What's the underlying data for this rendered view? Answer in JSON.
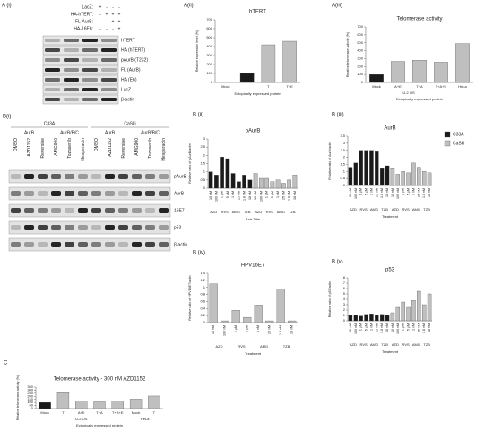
{
  "blots": [
    {
      "panel_label": "A (i)",
      "conditions": [
        {
          "name": "LacZ:",
          "signs": [
            "+",
            "-",
            "-",
            "-"
          ]
        },
        {
          "name": "HA-hTERT:",
          "signs": [
            "-",
            "+",
            "+",
            "+"
          ]
        },
        {
          "name": "FL-AurB:",
          "signs": [
            "-",
            "-",
            "+",
            "+"
          ]
        },
        {
          "name": "HA-16E6:",
          "signs": [
            "-",
            "-",
            "-",
            "+"
          ]
        }
      ],
      "rows": [
        "hTERT",
        "HA (hTERT)",
        "pAurB (T232)",
        "FL (AurB)",
        "HA (E6)",
        "LacZ",
        "β-actin"
      ]
    },
    {
      "panel_label": "B(i)",
      "cell_lines": [
        {
          "name": "C33A",
          "subheaders": [
            "AurB",
            "AurB/B/C"
          ],
          "lanes": [
            "DMSO",
            "AZD1152",
            "Reversine",
            "AMG900",
            "Tozasertib",
            "Hesperadin"
          ]
        },
        {
          "name": "CaSki",
          "subheaders": [
            "AurB",
            "AurB/B/C"
          ],
          "lanes": [
            "DMSO",
            "AZD1152",
            "Reversine",
            "AMG900",
            "Tozasertib",
            "Hesperadin"
          ]
        }
      ],
      "rows": [
        "pAurB",
        "AurB",
        "16E7",
        "p53",
        "β-actin"
      ]
    }
  ],
  "chart_data": [
    {
      "type": "bar",
      "panel_label": "A(ii)",
      "title": "hTERT",
      "ylabel": "Relative expression level (%)",
      "xlabel": "Ectopically expressed protein",
      "categories": [
        "Mock",
        null,
        "T",
        "T+E"
      ],
      "values": [
        0,
        100,
        420,
        460
      ],
      "colors": [
        "#bfbfbf",
        "#1a1a1a",
        "#bfbfbf",
        "#bfbfbf"
      ],
      "ylim": [
        0,
        700
      ],
      "yticks": [
        0,
        100,
        200,
        300,
        400,
        500,
        600,
        700
      ]
    },
    {
      "type": "bar",
      "panel_label": "A(iii)",
      "title": "Telomerase activity",
      "ylabel": "Relative telomerase activity (%)",
      "xlabel": "Ectopically expressed protein",
      "categories": [
        "Mock",
        "A+E",
        "T+A",
        "T+A+E",
        "HeLa"
      ],
      "values": [
        100,
        265,
        280,
        255,
        490
      ],
      "colors": [
        "#1a1a1a",
        "#bfbfbf",
        "#bfbfbf",
        "#bfbfbf",
        "#bfbfbf"
      ],
      "groups": [
        {
          "label": "U-2 OS",
          "first": 0,
          "last": 3
        }
      ],
      "ylim": [
        0,
        700
      ],
      "yticks": [
        0,
        100,
        200,
        300,
        400,
        500,
        600,
        700
      ]
    },
    {
      "type": "bar",
      "panel_label": "B (ii)",
      "title": "pAurB",
      "ylabel": "Relative ratio of pAurB/actin",
      "xlabel": "Axis Title",
      "categories": [
        "10 nM",
        "100 nM",
        "1 μM",
        "5 μM",
        "1 nM",
        "25 nM",
        "1.8 nM",
        "18 nM",
        "10 nM",
        "100 nM",
        "1 μM",
        "5 μM",
        "1 nM",
        "25 nM",
        "1.8 nM",
        "18 nM"
      ],
      "series": [
        {
          "name": "C33A",
          "color": "#1a1a1a",
          "values": [
            1.0,
            0.8,
            1.9,
            1.8,
            0.9,
            0.4,
            0.8,
            0.5,
            null,
            null,
            null,
            null,
            null,
            null,
            null,
            null
          ]
        },
        {
          "name": "CaSki",
          "color": "#bfbfbf",
          "values": [
            null,
            null,
            null,
            null,
            null,
            null,
            null,
            null,
            0.9,
            0.6,
            0.6,
            0.4,
            0.5,
            0.3,
            0.5,
            0.8
          ]
        }
      ],
      "groups": [
        {
          "label": "AZD",
          "first": 0,
          "last": 1
        },
        {
          "label": "RVS",
          "first": 2,
          "last": 3
        },
        {
          "label": "AMG",
          "first": 4,
          "last": 5
        },
        {
          "label": "TZB",
          "first": 6,
          "last": 7
        },
        {
          "label": "AZD",
          "first": 8,
          "last": 9
        },
        {
          "label": "RVS",
          "first": 10,
          "last": 11
        },
        {
          "label": "AMG",
          "first": 12,
          "last": 13
        },
        {
          "label": "TZB",
          "first": 14,
          "last": 15
        }
      ],
      "ylim": [
        0,
        3
      ],
      "yticks": [
        0,
        0.5,
        1,
        1.5,
        2,
        2.5,
        3
      ]
    },
    {
      "type": "bar",
      "panel_label": "B (iii)",
      "title": "AurB",
      "ylabel": "Relative ratio of AurB/actin",
      "xlabel": "Treatment",
      "legend": true,
      "categories": [
        "10 nM",
        "100 nM",
        "1 μM",
        "5 μM",
        "1 nM",
        "25 nM",
        "1.8 nM",
        "18 nM",
        "10 nM",
        "100 nM",
        "1 μM",
        "5 μM",
        "1 nM",
        "25 nM",
        "1.8 nM",
        "18 nM"
      ],
      "series": [
        {
          "name": "C33A",
          "color": "#1a1a1a",
          "values": [
            1.3,
            1.6,
            2.5,
            2.5,
            2.5,
            2.4,
            1.2,
            1.4,
            null,
            null,
            null,
            null,
            null,
            null,
            null,
            null
          ]
        },
        {
          "name": "CaSki",
          "color": "#bfbfbf",
          "values": [
            null,
            null,
            null,
            null,
            null,
            null,
            null,
            null,
            1.2,
            0.8,
            1.0,
            0.9,
            1.6,
            1.3,
            1.0,
            0.9
          ]
        }
      ],
      "groups": [
        {
          "label": "AZD",
          "first": 0,
          "last": 1
        },
        {
          "label": "RVS",
          "first": 2,
          "last": 3
        },
        {
          "label": "AMG",
          "first": 4,
          "last": 5
        },
        {
          "label": "TZB",
          "first": 6,
          "last": 7
        },
        {
          "label": "AZD",
          "first": 8,
          "last": 9
        },
        {
          "label": "RVS",
          "first": 10,
          "last": 11
        },
        {
          "label": "AMG",
          "first": 12,
          "last": 13
        },
        {
          "label": "TZB",
          "first": 14,
          "last": 15
        }
      ],
      "ylim": [
        0,
        3.5
      ],
      "yticks": [
        0,
        0.5,
        1,
        1.5,
        2,
        2.5,
        3,
        3.5
      ]
    },
    {
      "type": "bar",
      "panel_label": "B (iv)",
      "title": "HPV16E7",
      "ylabel": "Relative ratio of HPV16E7/actin",
      "xlabel": "Treatment",
      "categories": [
        "10 nM",
        "100 nM",
        "1 μM",
        "5 μM",
        "1 nM",
        "25 nM",
        "1.8 nM",
        "18 nM"
      ],
      "series": [
        {
          "name": "CaSki",
          "color": "#bfbfbf",
          "values": [
            1.1,
            0.05,
            0.35,
            0.15,
            0.5,
            0.05,
            0.95,
            0.05
          ]
        }
      ],
      "groups": [
        {
          "label": "AZD",
          "first": 0,
          "last": 1
        },
        {
          "label": "RVS",
          "first": 2,
          "last": 3
        },
        {
          "label": "AMG",
          "first": 4,
          "last": 5
        },
        {
          "label": "TZB",
          "first": 6,
          "last": 7
        }
      ],
      "ylim": [
        0,
        1.4
      ],
      "yticks": [
        0,
        0.2,
        0.4,
        0.6,
        0.8,
        1,
        1.2,
        1.4
      ]
    },
    {
      "type": "bar",
      "panel_label": "B (v)",
      "title": "p53",
      "ylabel": "Relative ratio of p53/actin",
      "xlabel": "Treatment",
      "categories": [
        "10 nM",
        "100 nM",
        "1 μM",
        "5 μM",
        "1 nM",
        "25 nM",
        "1.8 nM",
        "18 nM",
        "10 nM",
        "100 nM",
        "1 μM",
        "5 μM",
        "1 nM",
        "25 nM",
        "1.8 nM",
        "18 nM"
      ],
      "series": [
        {
          "name": "C33A",
          "color": "#1a1a1a",
          "values": [
            1.0,
            1.0,
            0.9,
            1.2,
            1.3,
            1.1,
            1.2,
            1.0,
            null,
            null,
            null,
            null,
            null,
            null,
            null,
            null
          ]
        },
        {
          "name": "CaSki",
          "color": "#bfbfbf",
          "values": [
            null,
            null,
            null,
            null,
            null,
            null,
            null,
            null,
            1.5,
            2.5,
            3.5,
            2.5,
            3.8,
            5.5,
            3.0,
            5.0
          ]
        }
      ],
      "groups": [
        {
          "label": "AZD",
          "first": 0,
          "last": 1
        },
        {
          "label": "RVS",
          "first": 2,
          "last": 3
        },
        {
          "label": "AMG",
          "first": 4,
          "last": 5
        },
        {
          "label": "TZB",
          "first": 6,
          "last": 7
        },
        {
          "label": "AZD",
          "first": 8,
          "last": 9
        },
        {
          "label": "RVS",
          "first": 10,
          "last": 11
        },
        {
          "label": "AMG",
          "first": 12,
          "last": 13
        },
        {
          "label": "TZB",
          "first": 14,
          "last": 15
        }
      ],
      "ylim": [
        0,
        8
      ],
      "yticks": [
        0,
        1,
        2,
        3,
        4,
        5,
        6,
        7,
        8
      ]
    },
    {
      "type": "bar",
      "panel_label": "C",
      "title": "Telomerase activity - 300 nM AZD1152",
      "ylabel": "Relative telomerase activity (%)",
      "xlabel": "Ectopically expressed protein",
      "categories": [
        "Mock",
        "T",
        "A+E",
        "T+A",
        "T+A+E",
        "Mock",
        "T"
      ],
      "values": [
        100,
        260,
        120,
        110,
        120,
        155,
        205
      ],
      "colors": [
        "#1a1a1a",
        "#bfbfbf",
        "#bfbfbf",
        "#bfbfbf",
        "#bfbfbf",
        "#bfbfbf",
        "#bfbfbf"
      ],
      "groups": [
        {
          "label": "U-2 OS",
          "first": 0,
          "last": 4
        },
        {
          "label": "HeLa",
          "first": 5,
          "last": 6
        }
      ],
      "ylim": [
        0,
        350
      ],
      "yticks": [
        0,
        50,
        100,
        150,
        200,
        250,
        300,
        350
      ]
    }
  ]
}
